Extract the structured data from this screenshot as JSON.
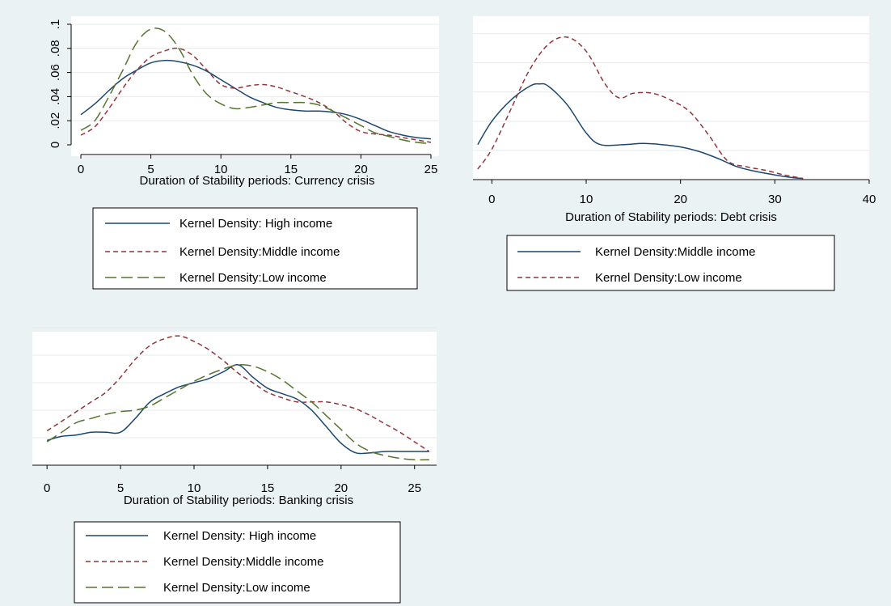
{
  "colors": {
    "background": "#eaf2f3",
    "plot_area": "#ffffff",
    "gridline": "#e3ebed",
    "high_income": "#1a476f",
    "middle_income": "#90353b",
    "low_income": "#55752f"
  },
  "chart_data": [
    {
      "type": "line",
      "panel": "currency",
      "xlabel": "Duration of Stability periods: Currency crisis",
      "ylabel": "",
      "xlim": [
        0,
        25
      ],
      "ylim": [
        0,
        0.1
      ],
      "xticks": [
        "0",
        "5",
        "10",
        "15",
        "20",
        "25"
      ],
      "xtick_values": [
        0,
        5,
        10,
        15,
        20,
        25
      ],
      "yticks": [
        "0",
        ".02",
        ".04",
        ".06",
        ".08",
        ".1"
      ],
      "ytick_values": [
        0,
        0.02,
        0.04,
        0.06,
        0.08,
        0.1
      ],
      "grid": true,
      "legend": "below",
      "series": [
        {
          "name": "Kernel Density: High income",
          "style": "solid",
          "color_key": "high_income",
          "x": [
            0,
            1,
            2,
            3,
            4,
            5,
            6,
            7,
            8,
            9,
            10,
            11,
            12,
            13,
            14,
            15,
            16,
            17,
            18,
            19,
            20,
            21,
            22,
            23,
            24,
            25
          ],
          "y": [
            0.025,
            0.034,
            0.045,
            0.055,
            0.062,
            0.068,
            0.07,
            0.069,
            0.066,
            0.061,
            0.054,
            0.047,
            0.04,
            0.035,
            0.031,
            0.029,
            0.028,
            0.028,
            0.027,
            0.025,
            0.021,
            0.016,
            0.011,
            0.008,
            0.006,
            0.005
          ]
        },
        {
          "name": "Kernel Density:Middle income",
          "style": "dash",
          "color_key": "middle_income",
          "x": [
            0,
            1,
            2,
            3,
            4,
            5,
            6,
            7,
            8,
            9,
            10,
            11,
            12,
            13,
            14,
            15,
            16,
            17,
            18,
            19,
            20,
            21,
            22,
            23,
            24,
            25
          ],
          "y": [
            0.008,
            0.015,
            0.03,
            0.047,
            0.062,
            0.073,
            0.078,
            0.08,
            0.074,
            0.062,
            0.05,
            0.047,
            0.049,
            0.05,
            0.048,
            0.044,
            0.04,
            0.035,
            0.028,
            0.018,
            0.011,
            0.009,
            0.008,
            0.006,
            0.004,
            0.002
          ]
        },
        {
          "name": "Kernel Density:Low income",
          "style": "longdash",
          "color_key": "low_income",
          "x": [
            0,
            1,
            2,
            3,
            4,
            5,
            6,
            7,
            8,
            9,
            10,
            11,
            12,
            13,
            14,
            15,
            16,
            17,
            18,
            19,
            20,
            21,
            22,
            23,
            24,
            25
          ],
          "y": [
            0.012,
            0.02,
            0.04,
            0.062,
            0.085,
            0.096,
            0.094,
            0.08,
            0.058,
            0.042,
            0.034,
            0.03,
            0.031,
            0.033,
            0.035,
            0.035,
            0.035,
            0.033,
            0.028,
            0.022,
            0.016,
            0.01,
            0.007,
            0.004,
            0.002,
            0.001
          ]
        }
      ]
    },
    {
      "type": "line",
      "panel": "debt",
      "xlabel": "Duration of Stability periods: Debt crisis",
      "ylabel": "",
      "xlim": [
        -2,
        40
      ],
      "ylim": [
        0,
        0.07
      ],
      "xticks": [
        "0",
        "10",
        "20",
        "30",
        "40"
      ],
      "xtick_values": [
        0,
        10,
        20,
        30,
        40
      ],
      "ytick_values": [
        0,
        0.0125,
        0.025,
        0.0375,
        0.05,
        0.0625
      ],
      "grid": true,
      "legend": "below",
      "series": [
        {
          "name": "Kernel Density:Middle income",
          "style": "solid",
          "color_key": "high_income",
          "x": [
            -1.5,
            0,
            2,
            4,
            5,
            6,
            8,
            10,
            11.5,
            14,
            16,
            18,
            20,
            22,
            24,
            26,
            28,
            30,
            32,
            33
          ],
          "y": [
            0.015,
            0.025,
            0.034,
            0.04,
            0.041,
            0.04,
            0.032,
            0.02,
            0.015,
            0.015,
            0.0155,
            0.015,
            0.014,
            0.012,
            0.009,
            0.0055,
            0.0035,
            0.002,
            0.0008,
            0.0005
          ]
        },
        {
          "name": "Kernel Density:Low income",
          "style": "dash",
          "color_key": "middle_income",
          "x": [
            -1.5,
            0,
            2,
            4,
            6,
            8,
            10,
            12,
            13.5,
            15,
            17,
            19,
            21,
            23,
            25,
            27,
            29,
            31,
            33
          ],
          "y": [
            0.0045,
            0.013,
            0.03,
            0.047,
            0.058,
            0.061,
            0.055,
            0.041,
            0.035,
            0.037,
            0.037,
            0.034,
            0.029,
            0.019,
            0.008,
            0.0055,
            0.004,
            0.002,
            0.0005
          ]
        }
      ]
    },
    {
      "type": "line",
      "panel": "banking",
      "xlabel": "Duration of Stability periods: Banking crisis",
      "ylabel": "",
      "xlim": [
        -1,
        26.5
      ],
      "ylim": [
        0,
        0.1
      ],
      "xticks": [
        "0",
        "5",
        "10",
        "15",
        "20",
        "25"
      ],
      "xtick_values": [
        0,
        5,
        10,
        15,
        20,
        25
      ],
      "ytick_values": [
        0,
        0.02,
        0.04,
        0.06,
        0.08,
        0.1
      ],
      "grid": true,
      "legend": "below",
      "series": [
        {
          "name": "Kernel Density: High income",
          "style": "solid",
          "color_key": "high_income",
          "x": [
            0,
            1,
            2,
            3,
            4,
            5,
            6,
            7,
            8,
            9,
            10,
            11,
            12,
            13,
            14,
            15,
            16,
            17,
            18,
            19,
            20,
            21,
            22,
            23,
            24,
            25,
            26
          ],
          "y": [
            0.018,
            0.021,
            0.022,
            0.024,
            0.024,
            0.024,
            0.034,
            0.046,
            0.052,
            0.057,
            0.06,
            0.063,
            0.068,
            0.073,
            0.064,
            0.056,
            0.052,
            0.048,
            0.04,
            0.028,
            0.016,
            0.009,
            0.009,
            0.01,
            0.01,
            0.01,
            0.01
          ]
        },
        {
          "name": "Kernel Density:Middle income",
          "style": "dash",
          "color_key": "middle_income",
          "x": [
            0,
            1,
            2,
            3,
            4,
            5,
            6,
            7,
            8,
            9,
            10,
            11,
            12,
            13,
            14,
            15,
            16,
            17,
            18,
            19,
            20,
            21,
            22,
            23,
            24,
            25,
            26
          ],
          "y": [
            0.025,
            0.032,
            0.039,
            0.046,
            0.053,
            0.064,
            0.077,
            0.087,
            0.092,
            0.094,
            0.09,
            0.084,
            0.076,
            0.067,
            0.06,
            0.053,
            0.049,
            0.046,
            0.046,
            0.046,
            0.044,
            0.041,
            0.036,
            0.03,
            0.024,
            0.017,
            0.01
          ]
        },
        {
          "name": "Kernel Density:Low income",
          "style": "longdash",
          "color_key": "low_income",
          "x": [
            0,
            1,
            2,
            3,
            4,
            5,
            6,
            7,
            8,
            9,
            10,
            11,
            12,
            13,
            14,
            15,
            16,
            17,
            18,
            19,
            20,
            21,
            22,
            23,
            24,
            25,
            26
          ],
          "y": [
            0.017,
            0.024,
            0.031,
            0.034,
            0.037,
            0.039,
            0.04,
            0.043,
            0.049,
            0.055,
            0.061,
            0.066,
            0.07,
            0.073,
            0.072,
            0.068,
            0.062,
            0.054,
            0.046,
            0.036,
            0.026,
            0.016,
            0.01,
            0.007,
            0.005,
            0.004,
            0.004
          ]
        }
      ]
    }
  ]
}
